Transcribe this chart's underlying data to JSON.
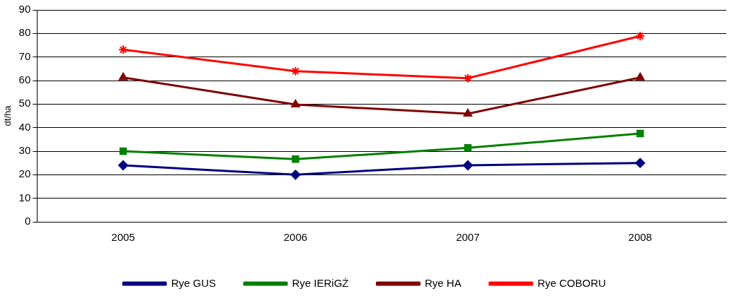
{
  "chart_data": {
    "type": "line",
    "ylabel": "dt/ha",
    "categories": [
      "2005",
      "2006",
      "2007",
      "2008"
    ],
    "series": [
      {
        "name": "Rye GUS",
        "color": "#000080",
        "marker": "diamond",
        "values": [
          24,
          20,
          24,
          25
        ]
      },
      {
        "name": "Rye IERiGŻ",
        "color": "#008000",
        "marker": "square",
        "values": [
          30,
          26.6,
          31.4,
          37.5
        ]
      },
      {
        "name": "Rye HA",
        "color": "#800000",
        "marker": "triangle",
        "values": [
          61.3,
          49.8,
          45.9,
          61.3
        ]
      },
      {
        "name": "Rye COBORU",
        "color": "#ff0000",
        "marker": "cross",
        "values": [
          73.1,
          64,
          61,
          78.9
        ]
      }
    ],
    "ylim": [
      0,
      90
    ],
    "yticks": [
      0,
      10,
      20,
      30,
      40,
      50,
      60,
      70,
      80,
      90
    ],
    "grid": "y",
    "legend": "bottom",
    "line_style": "solid"
  }
}
